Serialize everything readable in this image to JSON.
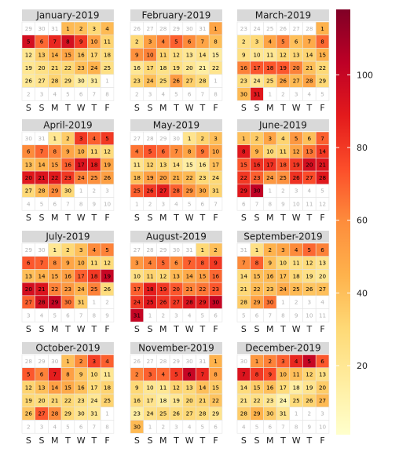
{
  "chart_data": {
    "type": "heatmap",
    "layout": "calendar",
    "year": 2019,
    "week_start": "Saturday",
    "weekday_labels": [
      "S",
      "S",
      "M",
      "T",
      "W",
      "T",
      "F"
    ],
    "months": [
      {
        "title": "January-2019",
        "first_weekday": 3,
        "days_in_month": 31,
        "prev_month_days": 31,
        "values": [
          42,
          40,
          30,
          42,
          95,
          68,
          85,
          95,
          80,
          52,
          32,
          20,
          35,
          45,
          50,
          38,
          32,
          28,
          20,
          25,
          30,
          30,
          40,
          45,
          25,
          18,
          22,
          32,
          25,
          15,
          15
        ]
      },
      {
        "title": "February-2019",
        "first_weekday": 6,
        "days_in_month": 28,
        "prev_month_days": 31,
        "values": [
          50,
          30,
          52,
          62,
          70,
          60,
          50,
          40,
          58,
          62,
          32,
          26,
          20,
          24,
          16,
          20,
          30,
          24,
          26,
          20,
          15,
          22,
          30,
          40,
          28,
          54,
          34,
          28
        ]
      },
      {
        "title": "March-2019",
        "first_weekday": 6,
        "days_in_month": 31,
        "prev_month_days": 28,
        "values": [
          45,
          25,
          30,
          50,
          62,
          40,
          48,
          68,
          25,
          20,
          20,
          30,
          30,
          32,
          45,
          62,
          72,
          72,
          72,
          62,
          40,
          30,
          28,
          20,
          30,
          50,
          42,
          50,
          30,
          42,
          90
        ]
      },
      {
        "title": "April-2019",
        "first_weekday": 2,
        "days_in_month": 30,
        "prev_month_days": 31,
        "values": [
          20,
          35,
          80,
          70,
          80,
          60,
          68,
          62,
          50,
          45,
          32,
          28,
          40,
          45,
          52,
          70,
          92,
          88,
          50,
          90,
          92,
          90,
          80,
          62,
          58,
          52,
          30,
          42,
          60,
          30
        ]
      },
      {
        "title": "May-2019",
        "first_weekday": 4,
        "days_in_month": 31,
        "prev_month_days": 30,
        "values": [
          22,
          32,
          40,
          65,
          72,
          68,
          60,
          50,
          65,
          50,
          22,
          32,
          30,
          25,
          15,
          20,
          40,
          40,
          52,
          52,
          45,
          42,
          30,
          30,
          70,
          80,
          88,
          70,
          58,
          48,
          32
        ]
      },
      {
        "title": "June-2019",
        "first_weekday": 0,
        "days_in_month": 30,
        "prev_month_days": 31,
        "values": [
          40,
          35,
          50,
          32,
          55,
          40,
          70,
          90,
          45,
          30,
          32,
          50,
          65,
          80,
          72,
          82,
          82,
          72,
          80,
          95,
          92,
          80,
          70,
          55,
          58,
          82,
          75,
          90,
          90,
          102
        ]
      },
      {
        "title": "July-2019",
        "first_weekday": 2,
        "days_in_month": 31,
        "prev_month_days": 30,
        "values": [
          20,
          30,
          40,
          60,
          62,
          72,
          70,
          60,
          50,
          45,
          30,
          28,
          40,
          45,
          48,
          52,
          70,
          80,
          100,
          95,
          92,
          62,
          55,
          45,
          62,
          28,
          70,
          95,
          100,
          65,
          35
        ]
      },
      {
        "title": "August-2019",
        "first_weekday": 5,
        "days_in_month": 31,
        "prev_month_days": 31,
        "values": [
          30,
          40,
          55,
          62,
          68,
          60,
          70,
          72,
          80,
          25,
          32,
          30,
          42,
          48,
          52,
          68,
          70,
          88,
          80,
          72,
          62,
          65,
          72,
          80,
          90,
          82,
          80,
          92,
          88,
          100,
          100
        ]
      },
      {
        "title": "September-2019",
        "first_weekday": 1,
        "days_in_month": 30,
        "prev_month_days": 31,
        "values": [
          25,
          45,
          50,
          60,
          68,
          62,
          60,
          70,
          40,
          30,
          25,
          28,
          22,
          28,
          40,
          42,
          40,
          30,
          25,
          20,
          30,
          42,
          40,
          48,
          42,
          38,
          40,
          35,
          52,
          65
        ]
      },
      {
        "title": "October-2019",
        "first_weekday": 3,
        "days_in_month": 31,
        "prev_month_days": 30,
        "values": [
          40,
          60,
          78,
          70,
          72,
          62,
          88,
          52,
          38,
          30,
          20,
          32,
          40,
          52,
          48,
          40,
          28,
          32,
          30,
          28,
          30,
          30,
          25,
          20,
          32,
          38,
          72,
          60,
          30,
          22,
          20
        ]
      },
      {
        "title": "November-2019",
        "first_weekday": 6,
        "days_in_month": 30,
        "prev_month_days": 31,
        "values": [
          45,
          62,
          70,
          68,
          80,
          100,
          85,
          52,
          30,
          20,
          20,
          32,
          30,
          40,
          35,
          28,
          22,
          15,
          20,
          30,
          32,
          38,
          15,
          25,
          30,
          28,
          30,
          28,
          22,
          42
        ]
      },
      {
        "title": "December-2019",
        "first_weekday": 1,
        "days_in_month": 31,
        "prev_month_days": 30,
        "values": [
          55,
          62,
          70,
          85,
          100,
          72,
          92,
          80,
          75,
          42,
          40,
          32,
          25,
          28,
          35,
          40,
          28,
          15,
          22,
          35,
          22,
          25,
          20,
          10,
          28,
          32,
          42,
          35,
          45,
          35,
          22
        ]
      }
    ],
    "colorbar": {
      "ticks": [
        20,
        40,
        60,
        80,
        100
      ],
      "range": [
        1,
        118
      ],
      "colors": [
        "#ffffcc",
        "#ffeda0",
        "#fed976",
        "#feb24c",
        "#fd8d3c",
        "#fc4e2a",
        "#e31a1c",
        "#bd0026",
        "#800026"
      ]
    }
  }
}
